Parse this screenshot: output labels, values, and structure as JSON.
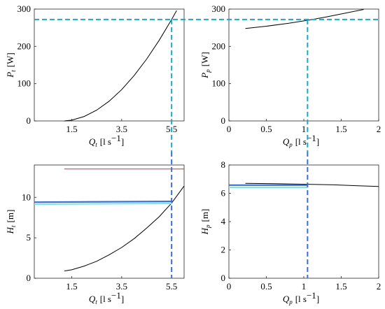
{
  "chart_data": [
    {
      "id": "Pt",
      "type": "line",
      "xlabel": {
        "sym": "Q",
        "sub": "t",
        "unit": "[l s",
        "sup": "−1",
        "close": "]"
      },
      "ylabel": {
        "sym": "P",
        "sub": "t",
        "unit": "[W]"
      },
      "xlim": [
        0,
        6
      ],
      "ylim": [
        0,
        300
      ],
      "xticks": [
        1.5,
        3.5,
        5.5
      ],
      "xtick_labels": [
        "1.5",
        "3.5",
        "5.5"
      ],
      "yticks": [
        0,
        100,
        200,
        300
      ],
      "ytick_labels": [
        "0",
        "100",
        "200",
        "300"
      ],
      "series": [
        {
          "color": "#000000",
          "x": [
            1.2,
            1.5,
            2,
            2.5,
            3,
            3.5,
            4,
            4.5,
            5,
            5.5,
            5.7
          ],
          "y": [
            0,
            2,
            12,
            29,
            53,
            84,
            122,
            166,
            216,
            272,
            296
          ]
        }
      ],
      "hline": {
        "y": 272,
        "color": "#1aa9c4"
      },
      "vline": {
        "x": 5.5,
        "color": "#1aa9c4"
      }
    },
    {
      "id": "Pp",
      "type": "line",
      "xlabel": {
        "sym": "Q",
        "sub": "p",
        "unit": "[l s",
        "sup": "−1",
        "close": "]"
      },
      "ylabel": {
        "sym": "P",
        "sub": "p",
        "unit": "[W]"
      },
      "xlim": [
        0,
        2
      ],
      "ylim": [
        0,
        300
      ],
      "xticks": [
        0,
        0.5,
        1,
        1.5,
        2
      ],
      "xtick_labels": [
        "0",
        "0.5",
        "1",
        "1.5",
        "2"
      ],
      "yticks": [
        0,
        100,
        200,
        300
      ],
      "ytick_labels": [
        "0",
        "100",
        "200",
        "300"
      ],
      "series": [
        {
          "color": "#000000",
          "x": [
            0.22,
            0.5,
            0.8,
            1.05,
            1.3,
            1.55,
            1.8
          ],
          "y": [
            248,
            254,
            262,
            270,
            279,
            289,
            299
          ]
        }
      ],
      "hline": {
        "y": 272,
        "color": "#1aa9c4"
      },
      "vline": {
        "x": 1.05,
        "color": "#1aa9c4"
      }
    },
    {
      "id": "Ht",
      "type": "line",
      "xlabel": {
        "sym": "Q",
        "sub": "t",
        "unit": "[l s",
        "sup": "−1",
        "close": "]"
      },
      "ylabel": {
        "sym": "H",
        "sub": "t",
        "unit": "[m]"
      },
      "xlim": [
        0,
        6
      ],
      "ylim": [
        0,
        14
      ],
      "xticks": [
        1.5,
        3.5,
        5.5
      ],
      "xtick_labels": [
        "1.5",
        "3.5",
        "5.5"
      ],
      "yticks": [
        0,
        5,
        10
      ],
      "ytick_labels": [
        "0",
        "5",
        "10"
      ],
      "series": [
        {
          "color": "#000000",
          "x": [
            1.2,
            1.5,
            2,
            2.5,
            3,
            3.5,
            4,
            4.5,
            5,
            5.5,
            6
          ],
          "y": [
            0.9,
            1.05,
            1.5,
            2.1,
            2.9,
            3.8,
            4.9,
            6.2,
            7.6,
            9.3,
            11.4
          ]
        },
        {
          "color": "#c0392b",
          "x": [
            1.2,
            6
          ],
          "y": [
            13.5,
            13.5
          ]
        },
        {
          "color": "#3a6fd8",
          "x": [
            0,
            5.5
          ],
          "y": [
            9.4,
            9.5
          ],
          "width": 2.2
        },
        {
          "color": "#7fe3ee",
          "x": [
            0,
            5.5
          ],
          "y": [
            9.15,
            9.25
          ],
          "width": 2
        }
      ],
      "vline": {
        "x": 5.5,
        "color": "#3a6fd8"
      }
    },
    {
      "id": "Hp",
      "type": "line",
      "xlabel": {
        "sym": "Q",
        "sub": "p",
        "unit": "[l s",
        "sup": "−1",
        "close": "]"
      },
      "ylabel": {
        "sym": "H",
        "sub": "p",
        "unit": "[m]"
      },
      "xlim": [
        0,
        2
      ],
      "ylim": [
        0,
        8
      ],
      "xticks": [
        0,
        0.5,
        1,
        1.5,
        2
      ],
      "xtick_labels": [
        "0",
        "0.5",
        "1",
        "1.5",
        "2"
      ],
      "yticks": [
        0,
        2,
        4,
        6,
        8
      ],
      "ytick_labels": [
        "0",
        "2",
        "4",
        "6",
        "8"
      ],
      "series": [
        {
          "color": "#000000",
          "x": [
            0.22,
            0.6,
            1.0,
            1.4,
            1.8,
            2.0
          ],
          "y": [
            6.7,
            6.68,
            6.64,
            6.6,
            6.52,
            6.48
          ]
        },
        {
          "color": "#3a6fd8",
          "x": [
            0,
            1.05
          ],
          "y": [
            6.58,
            6.58
          ],
          "width": 2.2
        },
        {
          "color": "#7fe3ee",
          "x": [
            0,
            1.05
          ],
          "y": [
            6.42,
            6.42
          ],
          "width": 2
        }
      ],
      "vline": {
        "x": 1.05,
        "color": "#3a6fd8"
      }
    }
  ]
}
